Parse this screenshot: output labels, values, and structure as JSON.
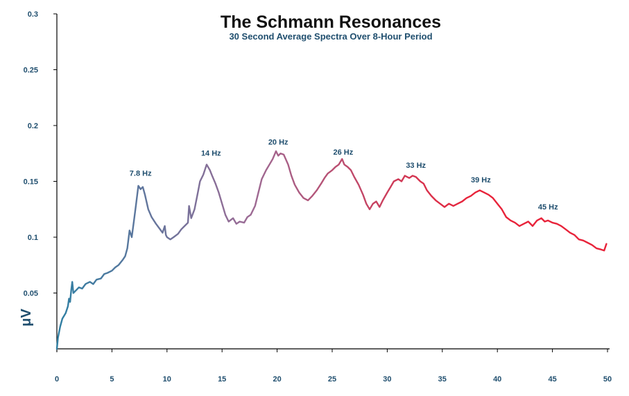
{
  "colors": {
    "text": "#1f4e6e",
    "title": "#111111",
    "axis": "#000000",
    "gradient_start": "#2f7fa3",
    "gradient_mid": "#9c6b95",
    "gradient_end": "#e8233a"
  },
  "chart_data": {
    "type": "line",
    "title": "The Schmann Resonances",
    "subtitle": "30 Second Average Spectra Over 8-Hour Period",
    "xlabel": "",
    "ylabel": "μV",
    "xlim": [
      0,
      50
    ],
    "ylim": [
      0,
      0.3
    ],
    "grid": false,
    "x_ticks": [
      {
        "value": 0,
        "label": "0"
      },
      {
        "value": 5,
        "label": "5"
      },
      {
        "value": 10,
        "label": "10"
      },
      {
        "value": 15,
        "label": "15"
      },
      {
        "value": 20,
        "label": "20"
      },
      {
        "value": 25,
        "label": "25"
      },
      {
        "value": 30,
        "label": "30"
      },
      {
        "value": 35,
        "label": "35"
      },
      {
        "value": 40,
        "label": "40"
      },
      {
        "value": 45,
        "label": "45"
      },
      {
        "value": 50,
        "label": "50"
      }
    ],
    "y_ticks": [
      {
        "value": 0.05,
        "label": "0.05"
      },
      {
        "value": 0.1,
        "label": "0.1"
      },
      {
        "value": 0.15,
        "label": "0.15"
      },
      {
        "value": 0.2,
        "label": "0.2"
      },
      {
        "value": 0.25,
        "label": "0.25"
      },
      {
        "value": 0.3,
        "label": "0.3"
      }
    ],
    "annotations": [
      {
        "text": "7.8 Hz",
        "x": 7.6,
        "y": 0.155
      },
      {
        "text": "14 Hz",
        "x": 14.0,
        "y": 0.173
      },
      {
        "text": "20 Hz",
        "x": 20.1,
        "y": 0.183
      },
      {
        "text": "26 Hz",
        "x": 26.0,
        "y": 0.174
      },
      {
        "text": "33 Hz",
        "x": 32.6,
        "y": 0.162
      },
      {
        "text": "39 Hz",
        "x": 38.5,
        "y": 0.149
      },
      {
        "text": "45 Hz",
        "x": 44.6,
        "y": 0.125
      }
    ],
    "series": [
      {
        "x": [
          0.0,
          0.1,
          0.3,
          0.5,
          0.8,
          1.0,
          1.1,
          1.2,
          1.3,
          1.4,
          1.5,
          1.7,
          2.0,
          2.3,
          2.6,
          3.0,
          3.3,
          3.6,
          4.0,
          4.3,
          4.6,
          5.0,
          5.3,
          5.6,
          6.0,
          6.2,
          6.4,
          6.5,
          6.6,
          6.8,
          7.0,
          7.2,
          7.4,
          7.6,
          7.8,
          8.0,
          8.3,
          8.6,
          9.0,
          9.3,
          9.6,
          9.8,
          9.9,
          10.0,
          10.3,
          10.6,
          11.0,
          11.3,
          11.6,
          11.9,
          12.0,
          12.2,
          12.5,
          12.8,
          13.0,
          13.3,
          13.6,
          13.9,
          14.1,
          14.4,
          14.7,
          15.0,
          15.3,
          15.6,
          16.0,
          16.3,
          16.6,
          17.0,
          17.3,
          17.6,
          18.0,
          18.3,
          18.6,
          19.0,
          19.3,
          19.6,
          19.9,
          20.1,
          20.3,
          20.6,
          21.0,
          21.3,
          21.6,
          22.0,
          22.4,
          22.8,
          23.2,
          23.6,
          24.0,
          24.3,
          24.6,
          25.0,
          25.3,
          25.6,
          25.9,
          26.1,
          26.4,
          26.7,
          27.0,
          27.4,
          27.8,
          28.1,
          28.4,
          28.7,
          29.0,
          29.3,
          29.6,
          30.0,
          30.3,
          30.6,
          31.0,
          31.3,
          31.6,
          32.0,
          32.3,
          32.6,
          33.0,
          33.3,
          33.6,
          34.0,
          34.4,
          34.8,
          35.2,
          35.6,
          36.0,
          36.4,
          36.8,
          37.2,
          37.6,
          38.0,
          38.4,
          38.8,
          39.2,
          39.6,
          40.0,
          40.4,
          40.8,
          41.2,
          41.6,
          42.0,
          42.4,
          42.8,
          43.2,
          43.6,
          44.0,
          44.3,
          44.6,
          45.0,
          45.4,
          45.8,
          46.2,
          46.6,
          47.0,
          47.4,
          47.8,
          48.2,
          48.6,
          49.0,
          49.4,
          49.7,
          49.9
        ],
        "y": [
          0.0,
          0.01,
          0.02,
          0.027,
          0.032,
          0.038,
          0.045,
          0.042,
          0.052,
          0.06,
          0.05,
          0.052,
          0.055,
          0.054,
          0.058,
          0.06,
          0.058,
          0.062,
          0.063,
          0.067,
          0.068,
          0.07,
          0.073,
          0.075,
          0.08,
          0.083,
          0.09,
          0.098,
          0.106,
          0.1,
          0.115,
          0.13,
          0.146,
          0.143,
          0.145,
          0.138,
          0.125,
          0.118,
          0.112,
          0.108,
          0.104,
          0.11,
          0.102,
          0.1,
          0.098,
          0.1,
          0.103,
          0.107,
          0.11,
          0.113,
          0.128,
          0.117,
          0.125,
          0.14,
          0.15,
          0.156,
          0.165,
          0.16,
          0.155,
          0.148,
          0.14,
          0.13,
          0.12,
          0.114,
          0.117,
          0.112,
          0.114,
          0.113,
          0.118,
          0.12,
          0.128,
          0.14,
          0.152,
          0.16,
          0.165,
          0.17,
          0.177,
          0.173,
          0.175,
          0.174,
          0.165,
          0.155,
          0.147,
          0.14,
          0.135,
          0.133,
          0.137,
          0.142,
          0.148,
          0.153,
          0.157,
          0.16,
          0.163,
          0.165,
          0.17,
          0.165,
          0.163,
          0.16,
          0.154,
          0.147,
          0.138,
          0.13,
          0.125,
          0.13,
          0.132,
          0.127,
          0.133,
          0.14,
          0.145,
          0.15,
          0.152,
          0.15,
          0.155,
          0.153,
          0.155,
          0.154,
          0.15,
          0.148,
          0.142,
          0.137,
          0.133,
          0.13,
          0.127,
          0.13,
          0.128,
          0.13,
          0.132,
          0.135,
          0.137,
          0.14,
          0.142,
          0.14,
          0.138,
          0.135,
          0.13,
          0.125,
          0.118,
          0.115,
          0.113,
          0.11,
          0.112,
          0.114,
          0.11,
          0.115,
          0.117,
          0.114,
          0.115,
          0.113,
          0.112,
          0.11,
          0.107,
          0.104,
          0.102,
          0.098,
          0.097,
          0.095,
          0.093,
          0.09,
          0.089,
          0.088,
          0.094
        ]
      }
    ]
  }
}
